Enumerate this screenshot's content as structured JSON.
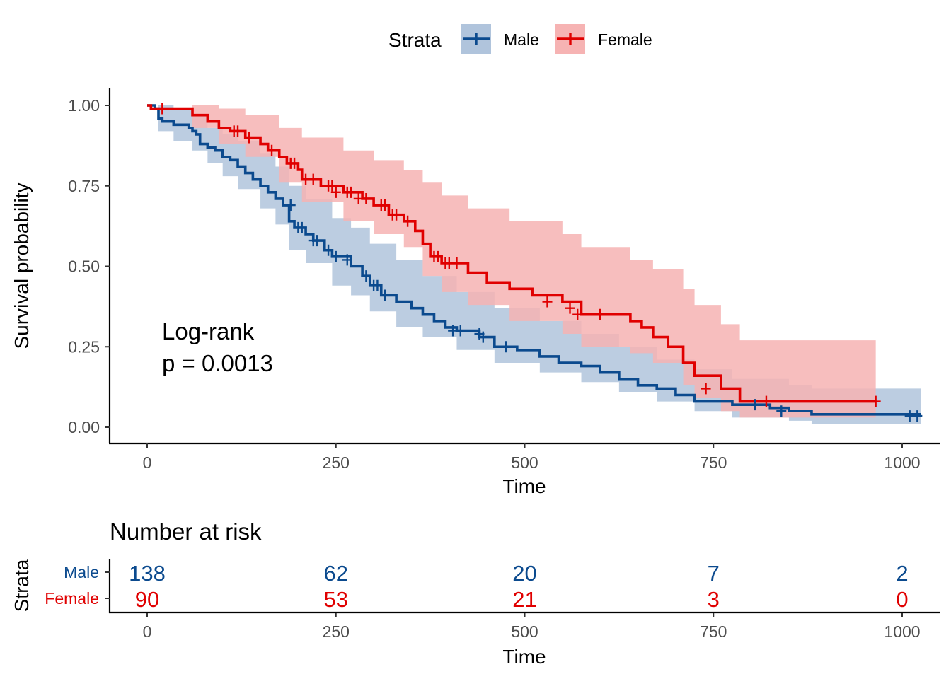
{
  "chart_data": [
    {
      "type": "line",
      "subtype": "kaplan-meier",
      "xlabel": "Time",
      "ylabel": "Survival probability",
      "xlim": [
        0,
        1025
      ],
      "ylim": [
        0,
        1
      ],
      "xticks": [
        0,
        250,
        500,
        750,
        1000
      ],
      "yticks": [
        0,
        0.25,
        0.5,
        0.75,
        1.0
      ],
      "ytick_labels": [
        "0.00",
        "0.25",
        "0.50",
        "0.75",
        "1.00"
      ],
      "grid": false,
      "legend": {
        "title": "Strata",
        "position": "top"
      },
      "annotation": {
        "line1": "Log-rank",
        "line2": "p = 0.0013"
      },
      "series": [
        {
          "name": "Male",
          "color": "#0b4a8e",
          "band_color": "#b0c4dc",
          "steps": [
            [
              0,
              1.0
            ],
            [
              10,
              0.99
            ],
            [
              15,
              0.96
            ],
            [
              20,
              0.95
            ],
            [
              35,
              0.94
            ],
            [
              55,
              0.93
            ],
            [
              60,
              0.92
            ],
            [
              65,
              0.91
            ],
            [
              70,
              0.88
            ],
            [
              80,
              0.87
            ],
            [
              90,
              0.86
            ],
            [
              100,
              0.84
            ],
            [
              110,
              0.83
            ],
            [
              120,
              0.81
            ],
            [
              130,
              0.79
            ],
            [
              140,
              0.77
            ],
            [
              150,
              0.75
            ],
            [
              160,
              0.73
            ],
            [
              170,
              0.71
            ],
            [
              180,
              0.69
            ],
            [
              188,
              0.64
            ],
            [
              195,
              0.62
            ],
            [
              210,
              0.6
            ],
            [
              220,
              0.58
            ],
            [
              235,
              0.55
            ],
            [
              245,
              0.53
            ],
            [
              270,
              0.5
            ],
            [
              285,
              0.47
            ],
            [
              295,
              0.44
            ],
            [
              310,
              0.41
            ],
            [
              330,
              0.39
            ],
            [
              350,
              0.37
            ],
            [
              365,
              0.35
            ],
            [
              380,
              0.33
            ],
            [
              395,
              0.31
            ],
            [
              410,
              0.3
            ],
            [
              440,
              0.28
            ],
            [
              460,
              0.25
            ],
            [
              490,
              0.24
            ],
            [
              520,
              0.22
            ],
            [
              545,
              0.2
            ],
            [
              575,
              0.19
            ],
            [
              600,
              0.17
            ],
            [
              625,
              0.15
            ],
            [
              650,
              0.13
            ],
            [
              675,
              0.12
            ],
            [
              700,
              0.1
            ],
            [
              725,
              0.08
            ],
            [
              775,
              0.07
            ],
            [
              825,
              0.06
            ],
            [
              850,
              0.05
            ],
            [
              880,
              0.04
            ],
            [
              1025,
              0.04
            ]
          ],
          "band_upper": [
            [
              0,
              1.0
            ],
            [
              15,
              1.0
            ],
            [
              35,
              0.99
            ],
            [
              60,
              0.97
            ],
            [
              80,
              0.93
            ],
            [
              100,
              0.91
            ],
            [
              120,
              0.89
            ],
            [
              150,
              0.85
            ],
            [
              170,
              0.81
            ],
            [
              188,
              0.75
            ],
            [
              210,
              0.71
            ],
            [
              245,
              0.65
            ],
            [
              270,
              0.62
            ],
            [
              295,
              0.57
            ],
            [
              330,
              0.52
            ],
            [
              365,
              0.47
            ],
            [
              410,
              0.42
            ],
            [
              460,
              0.37
            ],
            [
              520,
              0.33
            ],
            [
              575,
              0.29
            ],
            [
              625,
              0.25
            ],
            [
              675,
              0.21
            ],
            [
              725,
              0.18
            ],
            [
              775,
              0.15
            ],
            [
              850,
              0.13
            ],
            [
              880,
              0.12
            ],
            [
              1025,
              0.12
            ]
          ],
          "band_lower": [
            [
              0,
              1.0
            ],
            [
              15,
              0.92
            ],
            [
              35,
              0.89
            ],
            [
              60,
              0.86
            ],
            [
              80,
              0.82
            ],
            [
              100,
              0.78
            ],
            [
              120,
              0.74
            ],
            [
              150,
              0.68
            ],
            [
              170,
              0.63
            ],
            [
              188,
              0.55
            ],
            [
              210,
              0.51
            ],
            [
              245,
              0.44
            ],
            [
              270,
              0.41
            ],
            [
              295,
              0.36
            ],
            [
              330,
              0.31
            ],
            [
              365,
              0.28
            ],
            [
              410,
              0.24
            ],
            [
              460,
              0.2
            ],
            [
              520,
              0.17
            ],
            [
              575,
              0.14
            ],
            [
              625,
              0.11
            ],
            [
              675,
              0.08
            ],
            [
              725,
              0.05
            ],
            [
              775,
              0.03
            ],
            [
              850,
              0.02
            ],
            [
              880,
              0.01
            ],
            [
              1025,
              0.01
            ]
          ],
          "censors": [
            [
              190,
              0.69
            ],
            [
              200,
              0.62
            ],
            [
              205,
              0.62
            ],
            [
              220,
              0.58
            ],
            [
              225,
              0.58
            ],
            [
              240,
              0.55
            ],
            [
              250,
              0.53
            ],
            [
              265,
              0.52
            ],
            [
              290,
              0.47
            ],
            [
              300,
              0.44
            ],
            [
              305,
              0.44
            ],
            [
              315,
              0.41
            ],
            [
              405,
              0.3
            ],
            [
              415,
              0.3
            ],
            [
              440,
              0.29
            ],
            [
              445,
              0.28
            ],
            [
              475,
              0.25
            ],
            [
              805,
              0.07
            ],
            [
              840,
              0.05
            ],
            [
              1010,
              0.035
            ],
            [
              1020,
              0.035
            ]
          ]
        },
        {
          "name": "Female",
          "color": "#e00000",
          "band_color": "#f6b3b3",
          "steps": [
            [
              0,
              1.0
            ],
            [
              5,
              0.99
            ],
            [
              60,
              0.97
            ],
            [
              80,
              0.95
            ],
            [
              95,
              0.93
            ],
            [
              110,
              0.92
            ],
            [
              130,
              0.9
            ],
            [
              150,
              0.88
            ],
            [
              160,
              0.86
            ],
            [
              175,
              0.84
            ],
            [
              185,
              0.82
            ],
            [
              200,
              0.8
            ],
            [
              205,
              0.77
            ],
            [
              230,
              0.75
            ],
            [
              260,
              0.73
            ],
            [
              285,
              0.71
            ],
            [
              300,
              0.69
            ],
            [
              320,
              0.66
            ],
            [
              340,
              0.64
            ],
            [
              355,
              0.61
            ],
            [
              365,
              0.57
            ],
            [
              375,
              0.53
            ],
            [
              390,
              0.51
            ],
            [
              425,
              0.48
            ],
            [
              450,
              0.45
            ],
            [
              480,
              0.43
            ],
            [
              510,
              0.41
            ],
            [
              550,
              0.39
            ],
            [
              575,
              0.35
            ],
            [
              640,
              0.33
            ],
            [
              655,
              0.31
            ],
            [
              670,
              0.28
            ],
            [
              690,
              0.25
            ],
            [
              710,
              0.2
            ],
            [
              725,
              0.16
            ],
            [
              760,
              0.12
            ],
            [
              785,
              0.08
            ],
            [
              965,
              0.08
            ]
          ],
          "band_upper": [
            [
              0,
              1.0
            ],
            [
              60,
              1.0
            ],
            [
              95,
              0.99
            ],
            [
              130,
              0.97
            ],
            [
              175,
              0.93
            ],
            [
              205,
              0.9
            ],
            [
              260,
              0.86
            ],
            [
              300,
              0.83
            ],
            [
              340,
              0.8
            ],
            [
              365,
              0.76
            ],
            [
              390,
              0.72
            ],
            [
              425,
              0.68
            ],
            [
              480,
              0.64
            ],
            [
              550,
              0.6
            ],
            [
              575,
              0.56
            ],
            [
              640,
              0.52
            ],
            [
              670,
              0.49
            ],
            [
              710,
              0.43
            ],
            [
              725,
              0.38
            ],
            [
              760,
              0.32
            ],
            [
              785,
              0.27
            ],
            [
              965,
              0.27
            ]
          ],
          "band_lower": [
            [
              0,
              1.0
            ],
            [
              60,
              0.93
            ],
            [
              95,
              0.88
            ],
            [
              130,
              0.84
            ],
            [
              175,
              0.76
            ],
            [
              205,
              0.7
            ],
            [
              260,
              0.64
            ],
            [
              300,
              0.6
            ],
            [
              340,
              0.56
            ],
            [
              365,
              0.47
            ],
            [
              390,
              0.42
            ],
            [
              425,
              0.38
            ],
            [
              480,
              0.33
            ],
            [
              550,
              0.29
            ],
            [
              575,
              0.25
            ],
            [
              640,
              0.23
            ],
            [
              670,
              0.2
            ],
            [
              710,
              0.13
            ],
            [
              725,
              0.09
            ],
            [
              760,
              0.05
            ],
            [
              785,
              0.03
            ],
            [
              965,
              0.03
            ]
          ],
          "censors": [
            [
              20,
              0.99
            ],
            [
              115,
              0.92
            ],
            [
              120,
              0.92
            ],
            [
              135,
              0.9
            ],
            [
              165,
              0.86
            ],
            [
              190,
              0.82
            ],
            [
              195,
              0.82
            ],
            [
              210,
              0.77
            ],
            [
              220,
              0.77
            ],
            [
              240,
              0.75
            ],
            [
              245,
              0.75
            ],
            [
              250,
              0.73
            ],
            [
              265,
              0.73
            ],
            [
              270,
              0.73
            ],
            [
              280,
              0.71
            ],
            [
              290,
              0.71
            ],
            [
              310,
              0.69
            ],
            [
              315,
              0.69
            ],
            [
              325,
              0.66
            ],
            [
              330,
              0.66
            ],
            [
              345,
              0.64
            ],
            [
              380,
              0.53
            ],
            [
              385,
              0.53
            ],
            [
              395,
              0.51
            ],
            [
              400,
              0.51
            ],
            [
              410,
              0.51
            ],
            [
              530,
              0.39
            ],
            [
              560,
              0.37
            ],
            [
              570,
              0.35
            ],
            [
              600,
              0.35
            ],
            [
              740,
              0.12
            ],
            [
              820,
              0.08
            ],
            [
              965,
              0.08
            ]
          ]
        }
      ]
    },
    {
      "type": "table",
      "title": "Number at risk",
      "xlabel": "Time",
      "ylabel": "Strata",
      "xticks": [
        0,
        250,
        500,
        750,
        1000
      ],
      "rows": [
        {
          "name": "Male",
          "color": "#0b4a8e",
          "values": [
            138,
            62,
            20,
            7,
            2
          ]
        },
        {
          "name": "Female",
          "color": "#e00000",
          "values": [
            90,
            53,
            21,
            3,
            0
          ]
        }
      ]
    }
  ]
}
